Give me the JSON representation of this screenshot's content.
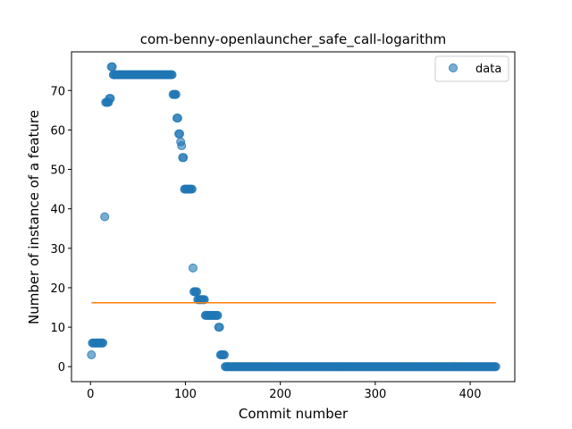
{
  "chart_data": {
    "type": "scatter",
    "title": "com-benny-openlauncher_safe_call-logarithm",
    "xlabel": "Commit number",
    "ylabel": "Number of instance of a feature",
    "xlim": [
      -20,
      447
    ],
    "ylim": [
      -3.8,
      79.8
    ],
    "xticks": [
      0,
      100,
      200,
      300,
      400
    ],
    "yticks": [
      0,
      10,
      20,
      30,
      40,
      50,
      60,
      70
    ],
    "grid": false,
    "legend": {
      "position": "top-right",
      "entries": [
        "data"
      ]
    },
    "series": [
      {
        "name": "data",
        "kind": "scatter",
        "color": "#1f77b4",
        "segments": [
          {
            "from": 1,
            "to": 1,
            "step": 1,
            "y": 3
          },
          {
            "from": 2,
            "to": 13,
            "step": 1,
            "y": 6
          },
          {
            "from": 15,
            "to": 15,
            "step": 1,
            "y": 38
          },
          {
            "from": 16,
            "to": 19,
            "step": 1,
            "y": 67
          },
          {
            "from": 20,
            "to": 21,
            "step": 1,
            "y": 68
          },
          {
            "from": 22,
            "to": 23,
            "step": 1,
            "y": 76
          },
          {
            "from": 24,
            "to": 86,
            "step": 1,
            "y": 74
          },
          {
            "from": 87,
            "to": 90,
            "step": 1,
            "y": 69
          },
          {
            "from": 91,
            "to": 92,
            "step": 1,
            "y": 63
          },
          {
            "from": 93,
            "to": 94,
            "step": 1,
            "y": 59
          },
          {
            "from": 95,
            "to": 95,
            "step": 1,
            "y": 57
          },
          {
            "from": 96,
            "to": 96,
            "step": 1,
            "y": 56
          },
          {
            "from": 97,
            "to": 98,
            "step": 1,
            "y": 53
          },
          {
            "from": 99,
            "to": 107,
            "step": 1,
            "y": 45
          },
          {
            "from": 108,
            "to": 108,
            "step": 1,
            "y": 25
          },
          {
            "from": 109,
            "to": 112,
            "step": 1,
            "y": 19
          },
          {
            "from": 113,
            "to": 120,
            "step": 1,
            "y": 17
          },
          {
            "from": 121,
            "to": 134,
            "step": 1,
            "y": 13
          },
          {
            "from": 135,
            "to": 136,
            "step": 1,
            "y": 10
          },
          {
            "from": 137,
            "to": 141,
            "step": 1,
            "y": 3
          },
          {
            "from": 142,
            "to": 427,
            "step": 1,
            "y": 0
          }
        ]
      },
      {
        "name": "",
        "kind": "line",
        "color": "#ff7f0e",
        "x": [
          1,
          427
        ],
        "y": [
          16.2,
          16.2
        ]
      }
    ]
  }
}
